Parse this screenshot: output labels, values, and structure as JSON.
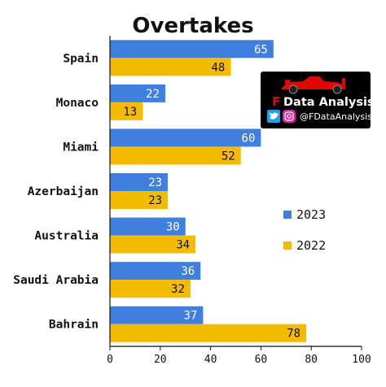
{
  "chart_data": {
    "type": "bar",
    "orientation": "horizontal",
    "title": "Overtakes",
    "categories": [
      "Spain",
      "Monaco",
      "Miami",
      "Azerbaijan",
      "Australia",
      "Saudi Arabia",
      "Bahrain"
    ],
    "series": [
      {
        "name": "2023",
        "color": "#3f7fe0",
        "values": [
          65,
          22,
          60,
          23,
          30,
          36,
          37
        ]
      },
      {
        "name": "2022",
        "color": "#f5bb00",
        "values": [
          48,
          13,
          52,
          23,
          34,
          32,
          78
        ]
      }
    ],
    "xlim": [
      0,
      100
    ],
    "xticks": [
      0,
      20,
      40,
      60,
      80,
      100
    ],
    "grid": false,
    "legend_position": "right"
  },
  "badge": {
    "letter": "F",
    "title": "Data Analysis",
    "handle": "@FDataAnalysis",
    "icons": [
      "twitter-icon",
      "instagram-icon",
      "race-car-icon"
    ],
    "background": "#000000",
    "accent": "#e10600"
  }
}
